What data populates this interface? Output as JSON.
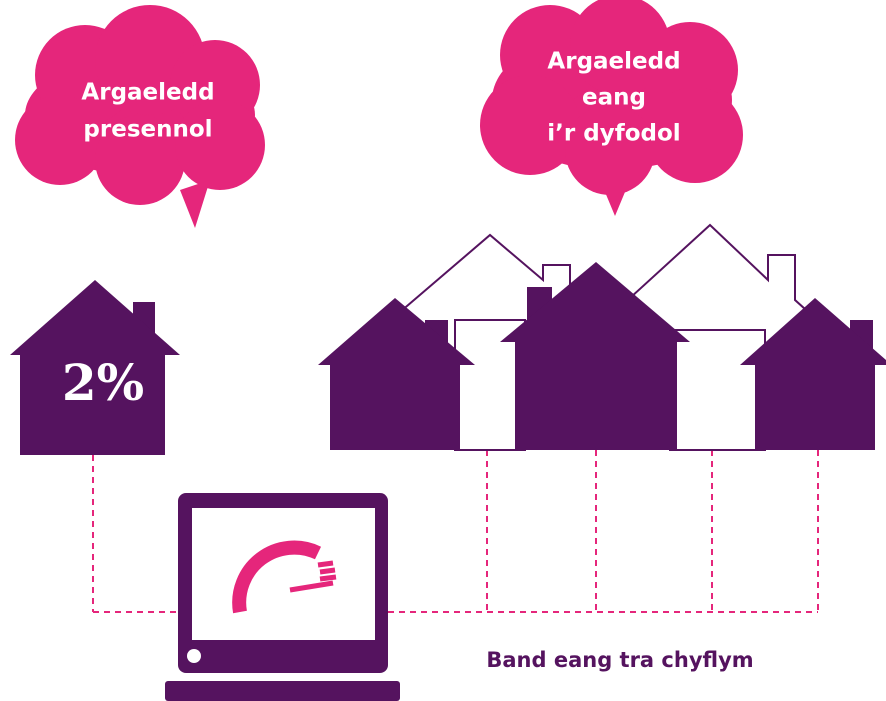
{
  "clouds": [
    {
      "lines": [
        "Argaeledd",
        "presennol"
      ]
    },
    {
      "lines": [
        "Argaeledd",
        "eang",
        "i’r dyfodol"
      ]
    }
  ],
  "house_label": "2%",
  "caption": "Band eang tra chyflym"
}
